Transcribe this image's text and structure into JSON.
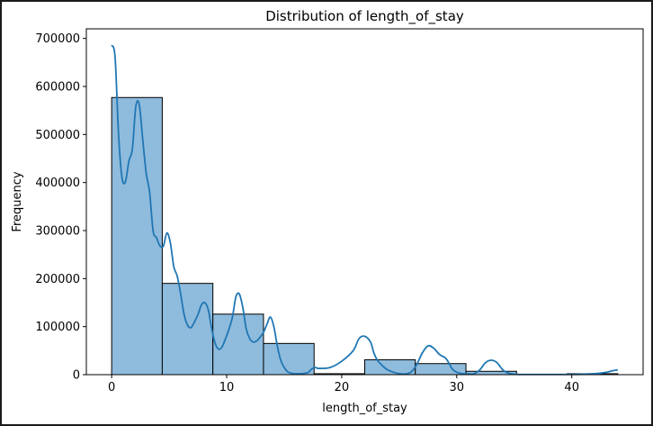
{
  "chart_data": {
    "type": "bar",
    "title": "Distribution of length_of_stay",
    "xlabel": "length_of_stay",
    "ylabel": "Frequency",
    "xlim": [
      -2.2,
      46.2
    ],
    "ylim": [
      0,
      720000
    ],
    "xticks": [
      0,
      10,
      20,
      30,
      40
    ],
    "yticks": [
      0,
      100000,
      200000,
      300000,
      400000,
      500000,
      600000,
      700000
    ],
    "bins": [
      {
        "x0": 0.0,
        "x1": 4.4,
        "value": 577000
      },
      {
        "x0": 4.4,
        "x1": 8.8,
        "value": 190000
      },
      {
        "x0": 8.8,
        "x1": 13.2,
        "value": 126000
      },
      {
        "x0": 13.2,
        "x1": 17.6,
        "value": 65000
      },
      {
        "x0": 17.6,
        "x1": 22.0,
        "value": 2000
      },
      {
        "x0": 22.0,
        "x1": 26.4,
        "value": 31000
      },
      {
        "x0": 26.4,
        "x1": 30.8,
        "value": 23000
      },
      {
        "x0": 30.8,
        "x1": 35.2,
        "value": 7000
      },
      {
        "x0": 35.2,
        "x1": 39.6,
        "value": 500
      },
      {
        "x0": 39.6,
        "x1": 44.0,
        "value": 2000
      }
    ],
    "kde": {
      "x": [
        0,
        0.3,
        0.6,
        0.9,
        1.2,
        1.5,
        1.8,
        2.1,
        2.4,
        2.7,
        3.0,
        3.3,
        3.6,
        3.9,
        4.2,
        4.5,
        4.8,
        5.1,
        5.4,
        5.7,
        6.0,
        6.3,
        6.6,
        6.9,
        7.2,
        7.5,
        7.8,
        8.1,
        8.4,
        8.7,
        9.0,
        9.3,
        9.6,
        9.9,
        10.2,
        10.5,
        10.8,
        11.1,
        11.4,
        11.7,
        12.0,
        12.3,
        12.6,
        12.9,
        13.2,
        13.5,
        13.8,
        14.1,
        14.4,
        14.7,
        15.0,
        15.3,
        15.6,
        15.9,
        16.2,
        16.5,
        16.8,
        17.1,
        17.4,
        17.7,
        18.0,
        19.0,
        20.0,
        21.0,
        21.5,
        22.0,
        22.5,
        22.8,
        23.1,
        23.4,
        23.7,
        24.0,
        24.5,
        25.0,
        25.5,
        26.0,
        26.5,
        27.0,
        27.5,
        28.0,
        28.5,
        29.0,
        29.3,
        29.6,
        30.0,
        30.5,
        31.0,
        31.5,
        32.0,
        32.5,
        33.0,
        33.5,
        34.0,
        34.5,
        35.0,
        35.5,
        36.0,
        38.0,
        40.0,
        42.0,
        43.0,
        43.5,
        44.0
      ],
      "y": [
        686000,
        660000,
        500000,
        410000,
        402000,
        445000,
        470000,
        558000,
        562000,
        490000,
        420000,
        380000,
        300000,
        285000,
        268000,
        268000,
        295000,
        275000,
        225000,
        205000,
        168000,
        125000,
        103000,
        98000,
        110000,
        125000,
        145000,
        150000,
        135000,
        95000,
        65000,
        53000,
        58000,
        75000,
        95000,
        120000,
        162000,
        168000,
        140000,
        95000,
        75000,
        68000,
        70000,
        78000,
        88000,
        105000,
        120000,
        100000,
        60000,
        30000,
        15000,
        6000,
        3000,
        2000,
        2000,
        2000,
        3000,
        5000,
        12000,
        15000,
        13000,
        15000,
        28000,
        50000,
        75000,
        80000,
        68000,
        45000,
        30000,
        22000,
        15000,
        10000,
        5000,
        2000,
        1500,
        5000,
        20000,
        45000,
        60000,
        55000,
        42000,
        35000,
        25000,
        12000,
        5000,
        2000,
        1500,
        2000,
        10000,
        25000,
        30000,
        25000,
        10000,
        3000,
        1000,
        500,
        500,
        500,
        500,
        2000,
        5000,
        8000,
        10000
      ]
    },
    "colors": {
      "bar_fill": "#8fbbdc",
      "bar_edge": "#000000",
      "kde_line": "#1f77b4"
    },
    "grid": false,
    "legend": "none"
  }
}
